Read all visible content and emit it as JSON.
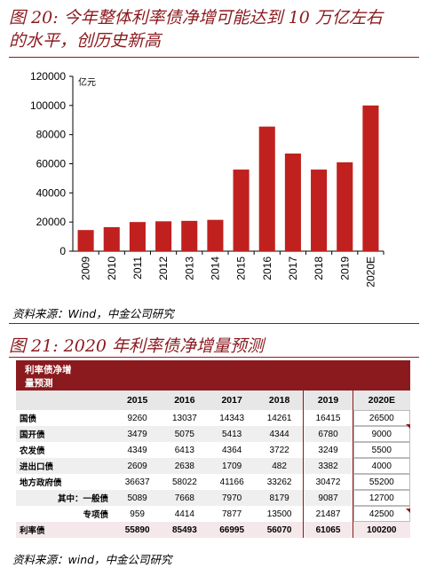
{
  "figure20": {
    "title_line1": "图 20: 今年整体利率债净增可能达到 10 万亿左右",
    "title_line2": "的水平，创历史新高",
    "source": "资料来源：Wind，中金公司研究"
  },
  "chart_data": {
    "type": "bar",
    "categories": [
      "2009",
      "2010",
      "2011",
      "2012",
      "2013",
      "2014",
      "2015",
      "2016",
      "2017",
      "2018",
      "2019",
      "2020E"
    ],
    "values": [
      14500,
      16500,
      20000,
      20500,
      20800,
      21500,
      56000,
      85500,
      67000,
      56000,
      61000,
      100000
    ],
    "ylabel": "亿元",
    "ylim": [
      0,
      120000
    ],
    "yticks": [
      "0",
      "20000",
      "40000",
      "60000",
      "80000",
      "100000",
      "120000"
    ],
    "bar_color": "#c0211e",
    "grid": false
  },
  "figure21": {
    "title": "图 21: 2020 年利率债净增量预测",
    "header_line1": "利率债净增",
    "header_line2": "量预测",
    "years": [
      "2015",
      "2016",
      "2017",
      "2018",
      "2019",
      "2020E"
    ],
    "rows": [
      {
        "label": "国债",
        "values": [
          "9260",
          "13037",
          "14343",
          "14261",
          "16415",
          "26500"
        ]
      },
      {
        "label": "国开债",
        "values": [
          "3479",
          "5075",
          "5413",
          "4344",
          "6780",
          "9000"
        ]
      },
      {
        "label": "农发债",
        "values": [
          "4349",
          "6413",
          "4364",
          "3722",
          "3249",
          "5500"
        ]
      },
      {
        "label": "进出口债",
        "values": [
          "2609",
          "2638",
          "1709",
          "482",
          "3382",
          "4000"
        ]
      },
      {
        "label": "地方政府债",
        "values": [
          "36637",
          "58022",
          "41166",
          "33262",
          "30472",
          "55200"
        ]
      },
      {
        "label": "其中：一般债",
        "values": [
          "5089",
          "7668",
          "7970",
          "8179",
          "9087",
          "12700"
        ]
      },
      {
        "label": "专项债",
        "values": [
          "959",
          "4414",
          "7877",
          "13500",
          "21487",
          "42500"
        ]
      },
      {
        "label": "利率债",
        "values": [
          "55890",
          "85493",
          "66995",
          "56070",
          "61065",
          "100200"
        ]
      }
    ],
    "source": "资料来源：wind，中金公司研究"
  }
}
